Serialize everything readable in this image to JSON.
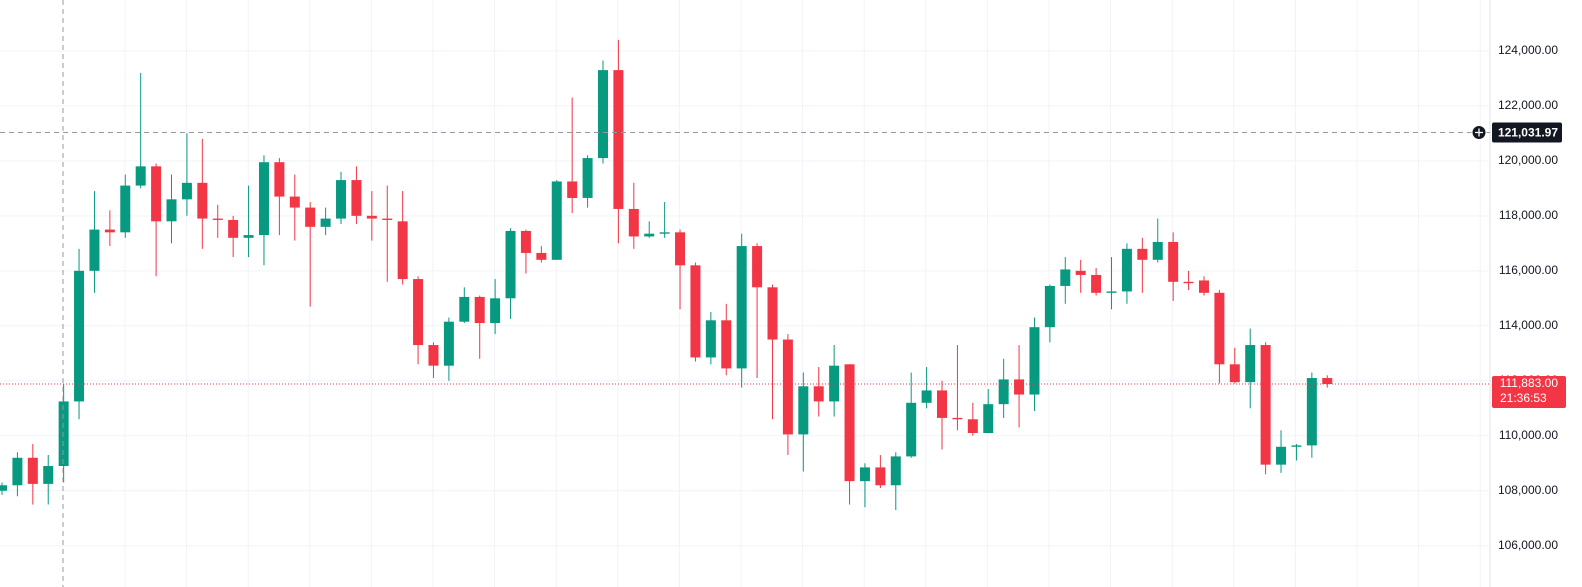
{
  "chart_data": {
    "type": "candlestick",
    "open": [
      108000,
      108200,
      109200,
      108250,
      108900,
      111250,
      116000,
      117500,
      117400,
      119100,
      119800,
      117800,
      118600,
      119200,
      117900,
      117850,
      117200,
      117300,
      119950,
      118700,
      118300,
      117600,
      117900,
      119300,
      118000,
      117900,
      117800,
      115700,
      113300,
      112550,
      114150,
      115050,
      114100,
      115000,
      117450,
      116650,
      116400,
      119250,
      118650,
      120100,
      123300,
      118250,
      117250,
      117350,
      117400,
      116200,
      112850,
      114200,
      112450,
      116900,
      115400,
      113500,
      110050,
      111800,
      111250,
      112600,
      108350,
      108850,
      108200,
      109250,
      111200,
      111650,
      110650,
      110600,
      110100,
      111150,
      112050,
      111500,
      113950,
      115450,
      116000,
      115850,
      115200,
      115250,
      116800,
      116400,
      117050,
      115600,
      115650,
      115200,
      112600,
      111950,
      113300,
      108950,
      109600,
      109650,
      112100
    ],
    "high": [
      108300,
      109400,
      109700,
      109300,
      111900,
      116800,
      118900,
      118200,
      119500,
      123200,
      119900,
      119500,
      121000,
      120800,
      118400,
      118000,
      119100,
      120200,
      120100,
      119500,
      118500,
      118300,
      119600,
      119800,
      118900,
      119100,
      118900,
      115800,
      113400,
      114300,
      115400,
      115100,
      115700,
      117550,
      117500,
      116900,
      119300,
      122300,
      120200,
      123650,
      124400,
      119200,
      117800,
      118500,
      117500,
      116300,
      114500,
      114800,
      117350,
      117000,
      115500,
      113700,
      112300,
      112500,
      113300,
      112600,
      109000,
      109300,
      109400,
      112300,
      112500,
      112000,
      113300,
      111200,
      111700,
      112800,
      113300,
      114300,
      115500,
      116500,
      116400,
      116100,
      116500,
      117000,
      117200,
      117900,
      117400,
      116000,
      115800,
      115300,
      113200,
      113900,
      113400,
      110200,
      109700,
      112300,
      112200
    ],
    "low": [
      107850,
      107800,
      107500,
      107500,
      108300,
      110600,
      115200,
      116900,
      117200,
      119000,
      115800,
      117000,
      118000,
      116800,
      117200,
      116500,
      116500,
      116200,
      117300,
      117100,
      114700,
      117300,
      117700,
      117700,
      117100,
      115600,
      115500,
      112600,
      112100,
      112000,
      114100,
      112800,
      113700,
      114250,
      115900,
      116300,
      116400,
      118100,
      118300,
      119900,
      117000,
      116800,
      117200,
      117200,
      114600,
      112700,
      112600,
      112200,
      111750,
      112100,
      110600,
      109300,
      108700,
      110700,
      110700,
      107500,
      107400,
      108100,
      107300,
      109200,
      111000,
      109500,
      110200,
      110000,
      110100,
      110650,
      110300,
      110900,
      113400,
      114800,
      115200,
      115100,
      114600,
      114800,
      115200,
      116300,
      114900,
      115300,
      115100,
      111900,
      111900,
      111000,
      108600,
      108650,
      109100,
      109200,
      111750
    ],
    "close": [
      108200,
      109200,
      108250,
      108900,
      111250,
      116000,
      117500,
      117400,
      119100,
      119800,
      117800,
      118600,
      119200,
      117900,
      117850,
      117200,
      117300,
      119950,
      118700,
      118300,
      117600,
      117900,
      119300,
      118000,
      117900,
      117850,
      115700,
      113300,
      112550,
      114150,
      115050,
      114100,
      115000,
      117450,
      116650,
      116400,
      119250,
      118650,
      120100,
      123300,
      118250,
      117250,
      117350,
      117400,
      116200,
      112850,
      114200,
      112450,
      116900,
      115400,
      113500,
      110050,
      111800,
      111250,
      112550,
      108350,
      108850,
      108200,
      109250,
      111200,
      111650,
      110650,
      110600,
      110100,
      111150,
      112050,
      111500,
      113950,
      115450,
      116050,
      115850,
      115200,
      115250,
      116800,
      116400,
      117050,
      115600,
      115550,
      115200,
      112600,
      111950,
      113300,
      108950,
      109600,
      109650,
      112100,
      111883
    ],
    "up_color": "#089981",
    "down_color": "#f23645",
    "ylim": [
      104500,
      125850
    ],
    "yticks": [
      {
        "value": 106000,
        "label": "106,000.00"
      },
      {
        "value": 108000,
        "label": "108,000.00"
      },
      {
        "value": 110000,
        "label": "110,000.00"
      },
      {
        "value": 112000,
        "label": "112,000.00"
      },
      {
        "value": 114000,
        "label": "114,000.00"
      },
      {
        "value": 116000,
        "label": "116,000.00"
      },
      {
        "value": 118000,
        "label": "118,000.00"
      },
      {
        "value": 120000,
        "label": "120,000.00"
      },
      {
        "value": 122000,
        "label": "122,000.00"
      },
      {
        "value": 124000,
        "label": "124,000.00"
      }
    ],
    "grid": true,
    "crosshair": {
      "value": 121031.97,
      "label": "121,031.97"
    },
    "last_price": {
      "value": 111883,
      "label": "111,883.00",
      "countdown": "21:36:53"
    }
  }
}
